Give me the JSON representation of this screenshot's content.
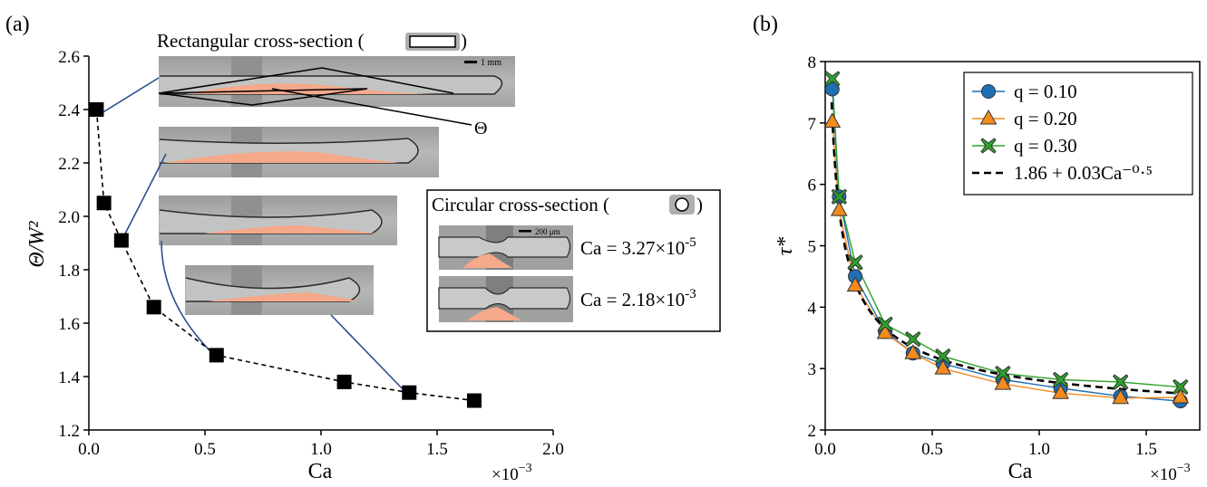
{
  "figure": {
    "panel_a_label": "(a)",
    "panel_b_label": "(b)"
  },
  "panel_a": {
    "rect_caption": "Rectangular cross-section (",
    "rect_caption_close": ")",
    "scale_rect": "1 mm",
    "theta_symbol": "Θ",
    "circ_caption": "Circular cross-section (",
    "circ_caption_close": ")",
    "scale_circ": "200 μm",
    "ca_label_1_base": "Ca = 3.27×10",
    "ca_label_1_exp": "-5",
    "ca_label_2_base": "Ca = 2.18×10",
    "ca_label_2_exp": "-3",
    "multiplier_base": "×10",
    "multiplier_exp": "−3"
  },
  "panel_b": {
    "multiplier_base": "×10",
    "multiplier_exp": "−3"
  },
  "colors": {
    "blue": "#1f6fb4",
    "orange": "#f28a1e",
    "green": "#2ea02c",
    "connector": "#2a4f8f",
    "droplet": "#f5a88a"
  },
  "chart_data": [
    {
      "type": "scatter",
      "title": "",
      "xlabel": "Ca",
      "ylabel": "Θ/W²",
      "xlim": [
        0,
        2.0
      ],
      "ylim": [
        1.2,
        2.6
      ],
      "x_ticks": [
        "0.0",
        "0.5",
        "1.0",
        "1.5",
        "2.0"
      ],
      "y_ticks": [
        "1.2",
        "1.4",
        "1.6",
        "1.8",
        "2.0",
        "2.2",
        "2.4",
        "2.6"
      ],
      "x_multiplier": "×10−3",
      "series": [
        {
          "x": [
            0.033,
            0.065,
            0.14,
            0.28,
            0.55,
            1.1,
            1.38,
            1.66
          ],
          "y": [
            2.4,
            2.05,
            1.91,
            1.66,
            1.48,
            1.38,
            1.34,
            1.31
          ],
          "marker": "square",
          "line": "dashed"
        }
      ]
    },
    {
      "type": "line",
      "title": "",
      "xlabel": "Ca",
      "ylabel": "τ*",
      "xlim": [
        0,
        1.75
      ],
      "ylim": [
        2,
        8
      ],
      "x_ticks": [
        "0.0",
        "0.5",
        "1.0",
        "1.5"
      ],
      "y_ticks": [
        "2",
        "3",
        "4",
        "5",
        "6",
        "7",
        "8"
      ],
      "x_multiplier": "×10−3",
      "legend_position": "top-right",
      "series": [
        {
          "name": "q = 0.10",
          "marker": "circle",
          "x": [
            0.033,
            0.065,
            0.14,
            0.28,
            0.41,
            0.55,
            0.83,
            1.1,
            1.38,
            1.66
          ],
          "y": [
            7.55,
            5.8,
            4.5,
            3.6,
            3.25,
            3.08,
            2.82,
            2.68,
            2.55,
            2.47
          ]
        },
        {
          "name": "q = 0.20",
          "marker": "triangle",
          "x": [
            0.033,
            0.065,
            0.14,
            0.28,
            0.41,
            0.55,
            0.83,
            1.1,
            1.38,
            1.66
          ],
          "y": [
            7.02,
            5.58,
            4.35,
            3.58,
            3.25,
            3.0,
            2.75,
            2.6,
            2.52,
            2.53
          ]
        },
        {
          "name": "q = 0.30",
          "marker": "cross",
          "x": [
            0.033,
            0.065,
            0.14,
            0.28,
            0.41,
            0.55,
            0.83,
            1.1,
            1.38,
            1.66
          ],
          "y": [
            7.72,
            5.8,
            4.73,
            3.72,
            3.48,
            3.2,
            2.92,
            2.82,
            2.78,
            2.7
          ]
        },
        {
          "name": "1.86 + 0.03Ca⁻⁰·⁵",
          "marker": "none",
          "line": "dashed",
          "fit": [
            1.86,
            0.03,
            -0.5
          ]
        }
      ]
    }
  ]
}
